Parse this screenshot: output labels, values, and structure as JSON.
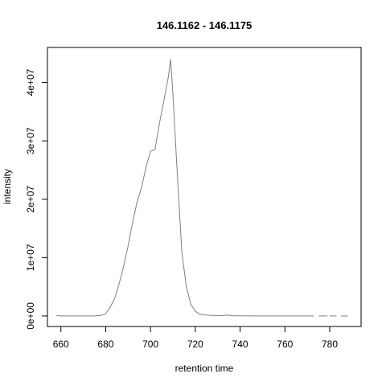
{
  "chart_data": {
    "type": "line",
    "title": "146.1162 - 146.1175",
    "xlabel": "retention time",
    "ylabel": "intensity",
    "xlim": [
      654,
      794
    ],
    "ylim": [
      -1800000,
      46000000
    ],
    "x_ticks": [
      660,
      680,
      700,
      720,
      740,
      760,
      780
    ],
    "x_tick_labels": [
      "660",
      "680",
      "700",
      "720",
      "740",
      "760",
      "780"
    ],
    "y_ticks": [
      0,
      10000000,
      20000000,
      30000000,
      40000000
    ],
    "y_tick_labels": [
      "0e+00",
      "1e+07",
      "2e+07",
      "3e+07",
      "4e+07"
    ],
    "grid": false,
    "series": [
      {
        "color": "#7f7f7f",
        "segments": [
          {
            "x": [
              658,
              660,
              665,
              670,
              675,
              678,
              680,
              682,
              684,
              686,
              688,
              690,
              692,
              694,
              696,
              698,
              700,
              702,
              704,
              706,
              708,
              709,
              710,
              712,
              714,
              716,
              718,
              720,
              722,
              725,
              728,
              732,
              734,
              736,
              740,
              750,
              760,
              770,
              773
            ],
            "y": [
              100000,
              0,
              0,
              0,
              0,
              100000,
              400000,
              1500000,
              3000000,
              5500000,
              8500000,
              12000000,
              16000000,
              19500000,
              22000000,
              25500000,
              28200000,
              28500000,
              33000000,
              37000000,
              41000000,
              44000000,
              38000000,
              24000000,
              11000000,
              5000000,
              2000000,
              800000,
              300000,
              150000,
              80000,
              50000,
              150000,
              50000,
              30000,
              10000,
              0,
              0,
              0
            ]
          },
          {
            "x": [
              775,
              779
            ],
            "y": [
              0,
              0
            ]
          },
          {
            "x": [
              780,
              783
            ],
            "y": [
              0,
              0
            ]
          },
          {
            "x": [
              785,
              788
            ],
            "y": [
              0,
              0
            ]
          }
        ]
      }
    ]
  }
}
